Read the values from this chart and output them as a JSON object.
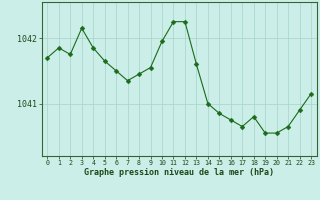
{
  "x": [
    0,
    1,
    2,
    3,
    4,
    5,
    6,
    7,
    8,
    9,
    10,
    11,
    12,
    13,
    14,
    15,
    16,
    17,
    18,
    19,
    20,
    21,
    22,
    23
  ],
  "y": [
    1041.7,
    1041.85,
    1041.75,
    1042.15,
    1041.85,
    1041.65,
    1041.5,
    1041.35,
    1041.45,
    1041.55,
    1041.95,
    1042.25,
    1042.25,
    1041.6,
    1041.0,
    1040.85,
    1040.75,
    1040.65,
    1040.8,
    1040.55,
    1040.55,
    1040.65,
    1040.9,
    1041.15
  ],
  "line_color": "#1a6b1a",
  "marker": "D",
  "marker_size": 2.5,
  "bg_color": "#cceee8",
  "grid_color": "#aad8d0",
  "tick_label_color": "#1a4a1a",
  "xlabel": "Graphe pression niveau de la mer (hPa)",
  "xlabel_color": "#1a4a1a",
  "ytick_labels": [
    "1041",
    "1042"
  ],
  "ytick_values": [
    1041.0,
    1042.0
  ],
  "ylim": [
    1040.2,
    1042.55
  ],
  "xlim": [
    -0.5,
    23.5
  ],
  "xtick_labels": [
    "0",
    "1",
    "2",
    "3",
    "4",
    "5",
    "6",
    "7",
    "8",
    "9",
    "10",
    "11",
    "12",
    "13",
    "14",
    "15",
    "16",
    "17",
    "18",
    "19",
    "20",
    "21",
    "22",
    "23"
  ],
  "spine_color": "#336633"
}
